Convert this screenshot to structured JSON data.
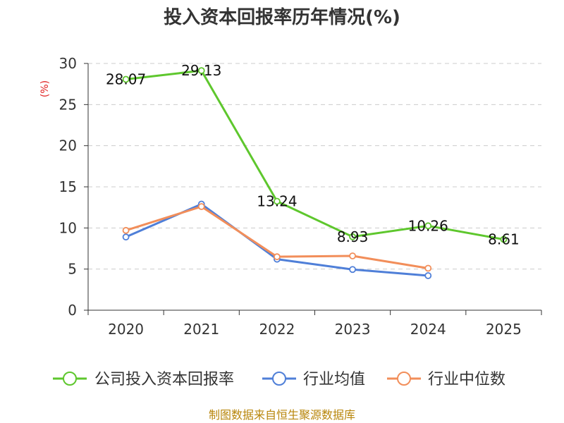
{
  "chart_data": {
    "type": "line",
    "title": "投入资本回报率历年情况(%)",
    "ylabel": "(%)",
    "xlabel": "",
    "categories": [
      "2020",
      "2021",
      "2022",
      "2023",
      "2024",
      "2025"
    ],
    "ylim": [
      0,
      30
    ],
    "yticks": [
      0,
      5,
      10,
      15,
      20,
      25,
      30
    ],
    "grid": true,
    "legend_position": "bottom",
    "series": [
      {
        "name": "公司投入资本回报率",
        "color": "#5ec72d",
        "values": [
          28.07,
          29.13,
          13.24,
          8.93,
          10.26,
          8.61
        ],
        "labels": [
          "28.07",
          "29.13",
          "13.24",
          "8.93",
          "10.26",
          "8.61"
        ]
      },
      {
        "name": "行业均值",
        "color": "#4f7fd8",
        "values": [
          8.9,
          12.9,
          6.2,
          4.95,
          4.2,
          null
        ]
      },
      {
        "name": "行业中位数",
        "color": "#f28e5a",
        "values": [
          9.7,
          12.6,
          6.5,
          6.6,
          5.1,
          null
        ]
      }
    ],
    "source": "制图数据来自恒生聚源数据库"
  }
}
